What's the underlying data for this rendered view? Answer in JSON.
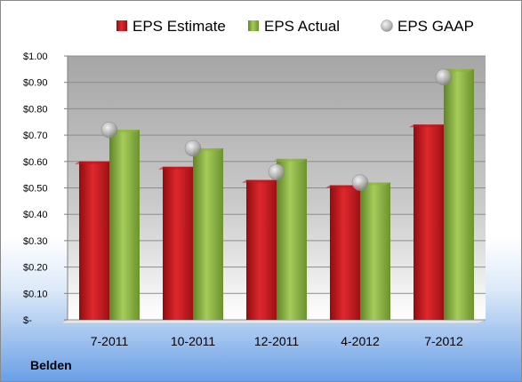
{
  "chart_data": {
    "type": "bar",
    "categories": [
      "7-2011",
      "10-2011",
      "12-2011",
      "4-2012",
      "7-2012"
    ],
    "series": [
      {
        "name": "EPS Estimate",
        "kind": "bar",
        "color": "#c0161c",
        "values": [
          0.6,
          0.58,
          0.53,
          0.51,
          0.74
        ]
      },
      {
        "name": "EPS Actual",
        "kind": "bar",
        "color": "#8cb342",
        "values": [
          0.72,
          0.65,
          0.61,
          0.52,
          0.95
        ]
      },
      {
        "name": "EPS GAAP",
        "kind": "marker",
        "color": "#a9a9a9",
        "values": [
          0.72,
          0.65,
          0.56,
          0.52,
          0.92
        ]
      }
    ],
    "ylim": [
      0,
      1.0
    ],
    "yticks": [
      0,
      0.1,
      0.2,
      0.3,
      0.4,
      0.5,
      0.6,
      0.7,
      0.8,
      0.9,
      1.0
    ],
    "ytick_labels": [
      "$-",
      "$0.10",
      "$0.20",
      "$0.30",
      "$0.40",
      "$0.50",
      "$0.60",
      "$0.70",
      "$0.80",
      "$0.90",
      "$1.00"
    ],
    "grid": true,
    "legend_position": "top"
  },
  "footer_label": "Belden"
}
